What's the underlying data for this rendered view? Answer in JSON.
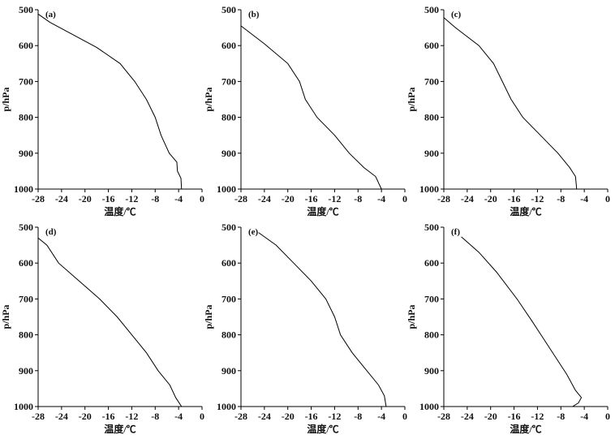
{
  "chart_data": [
    {
      "type": "line",
      "panel_label": "(a)",
      "xlabel": "温度/℃",
      "ylabel": "p/hPa",
      "xlim": [
        -28,
        0
      ],
      "ylim": [
        1000,
        500
      ],
      "y_inverted": true,
      "xticks": [
        -28,
        -24,
        -20,
        -16,
        -12,
        -8,
        -4,
        0
      ],
      "yticks": [
        500,
        600,
        700,
        800,
        900,
        1000
      ],
      "series": [
        {
          "points": [
            [
              -28.0,
              512
            ],
            [
              -26.0,
              535
            ],
            [
              -22.0,
              570
            ],
            [
              -18.0,
              605
            ],
            [
              -14.0,
              650
            ],
            [
              -11.5,
              700
            ],
            [
              -9.5,
              750
            ],
            [
              -8.0,
              800
            ],
            [
              -7.0,
              850
            ],
            [
              -5.6,
              900
            ],
            [
              -4.3,
              925
            ],
            [
              -4.2,
              950
            ],
            [
              -3.6,
              970
            ],
            [
              -3.5,
              1000
            ]
          ]
        }
      ]
    },
    {
      "type": "line",
      "panel_label": "(b)",
      "xlabel": "温度/℃",
      "ylabel": "p/hPa",
      "xlim": [
        -28,
        0
      ],
      "ylim": [
        1000,
        500
      ],
      "y_inverted": true,
      "xticks": [
        -28,
        -24,
        -20,
        -16,
        -12,
        -8,
        -4,
        0
      ],
      "yticks": [
        500,
        600,
        700,
        800,
        900,
        1000
      ],
      "series": [
        {
          "points": [
            [
              -28.0,
              545
            ],
            [
              -24.0,
              595
            ],
            [
              -20.0,
              650
            ],
            [
              -18.0,
              700
            ],
            [
              -17.0,
              750
            ],
            [
              -15.0,
              800
            ],
            [
              -12.0,
              850
            ],
            [
              -9.5,
              900
            ],
            [
              -7.0,
              940
            ],
            [
              -5.0,
              965
            ],
            [
              -4.0,
              1000
            ]
          ]
        }
      ]
    },
    {
      "type": "line",
      "panel_label": "(c)",
      "xlabel": "温度/℃",
      "ylabel": "p/hPa",
      "xlim": [
        -28,
        0
      ],
      "ylim": [
        1000,
        500
      ],
      "y_inverted": true,
      "xticks": [
        -28,
        -24,
        -20,
        -16,
        -12,
        -8,
        -4,
        0
      ],
      "yticks": [
        500,
        600,
        700,
        800,
        900,
        1000
      ],
      "series": [
        {
          "points": [
            [
              -28.0,
              522
            ],
            [
              -26.0,
              550
            ],
            [
              -22.0,
              600
            ],
            [
              -19.5,
              650
            ],
            [
              -18.0,
              700
            ],
            [
              -16.5,
              750
            ],
            [
              -14.5,
              800
            ],
            [
              -11.5,
              850
            ],
            [
              -8.5,
              900
            ],
            [
              -6.5,
              940
            ],
            [
              -5.5,
              965
            ],
            [
              -5.3,
              1000
            ]
          ]
        }
      ]
    },
    {
      "type": "line",
      "panel_label": "(d)",
      "xlabel": "温度/℃",
      "ylabel": "p/hPa",
      "xlim": [
        -28,
        0
      ],
      "ylim": [
        1000,
        500
      ],
      "y_inverted": true,
      "xticks": [
        -28,
        -24,
        -20,
        -16,
        -12,
        -8,
        -4,
        0
      ],
      "yticks": [
        500,
        600,
        700,
        800,
        900,
        1000
      ],
      "series": [
        {
          "points": [
            [
              -28.0,
              530
            ],
            [
              -26.5,
              550
            ],
            [
              -24.5,
              600
            ],
            [
              -21.0,
              650
            ],
            [
              -17.5,
              700
            ],
            [
              -14.5,
              750
            ],
            [
              -12.0,
              800
            ],
            [
              -9.5,
              850
            ],
            [
              -7.5,
              900
            ],
            [
              -5.5,
              940
            ],
            [
              -4.5,
              975
            ],
            [
              -3.5,
              1000
            ]
          ]
        }
      ]
    },
    {
      "type": "line",
      "panel_label": "(e)",
      "xlabel": "温度/℃",
      "ylabel": "p/hPa",
      "xlim": [
        -28,
        0
      ],
      "ylim": [
        1000,
        500
      ],
      "y_inverted": true,
      "xticks": [
        -28,
        -24,
        -20,
        -16,
        -12,
        -8,
        -4,
        0
      ],
      "yticks": [
        500,
        600,
        700,
        800,
        900,
        1000
      ],
      "series": [
        {
          "points": [
            [
              -25.0,
              515
            ],
            [
              -22.0,
              550
            ],
            [
              -19.0,
              600
            ],
            [
              -16.0,
              650
            ],
            [
              -13.5,
              700
            ],
            [
              -12.0,
              750
            ],
            [
              -11.0,
              800
            ],
            [
              -9.0,
              850
            ],
            [
              -6.5,
              900
            ],
            [
              -4.5,
              940
            ],
            [
              -3.5,
              970
            ],
            [
              -3.2,
              1000
            ]
          ]
        }
      ]
    },
    {
      "type": "line",
      "panel_label": "(f)",
      "xlabel": "温度/℃",
      "ylabel": "p/hPa",
      "xlim": [
        -28,
        0
      ],
      "ylim": [
        1000,
        500
      ],
      "y_inverted": true,
      "xticks": [
        -28,
        -24,
        -20,
        -16,
        -12,
        -8,
        -4,
        0
      ],
      "yticks": [
        500,
        600,
        700,
        800,
        900,
        1000
      ],
      "series": [
        {
          "points": [
            [
              -25.0,
              527
            ],
            [
              -22.0,
              570
            ],
            [
              -19.0,
              625
            ],
            [
              -15.5,
              700
            ],
            [
              -13.0,
              760
            ],
            [
              -11.0,
              810
            ],
            [
              -9.0,
              860
            ],
            [
              -7.0,
              910
            ],
            [
              -5.5,
              955
            ],
            [
              -4.5,
              975
            ],
            [
              -5.0,
              990
            ],
            [
              -6.0,
              1000
            ]
          ]
        }
      ]
    }
  ]
}
